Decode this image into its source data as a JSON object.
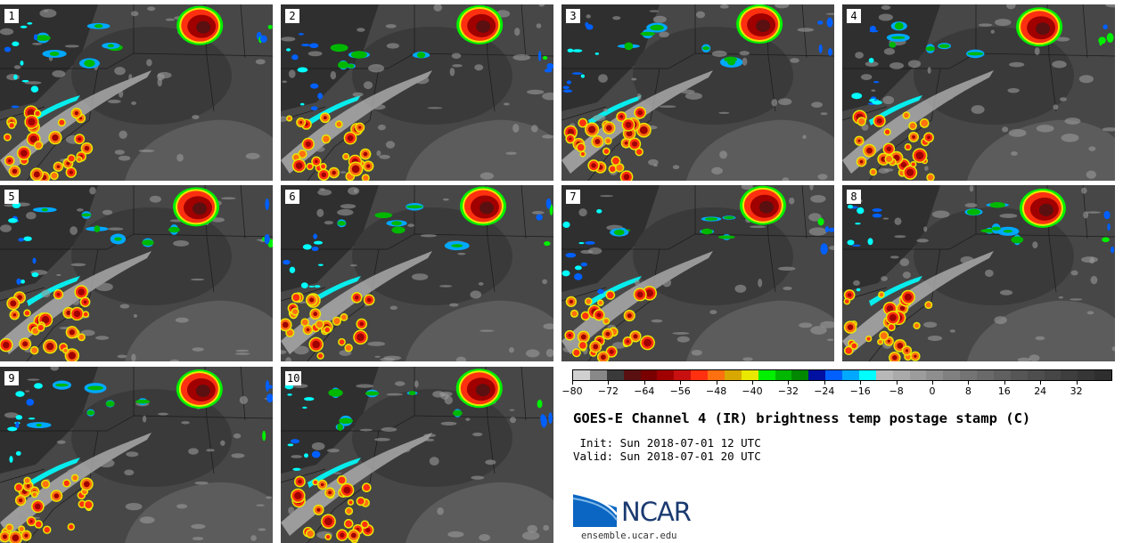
{
  "title": "GOES-E Channel 4 (IR) brightness temp postage stamp (C)",
  "init_line": " Init: Sun 2018-07-01 12 UTC",
  "valid_line": "Valid: Sun 2018-07-01 20 UTC",
  "logo_text": "NCAR",
  "site": "ensemble.ucar.edu",
  "panels": [
    "1",
    "2",
    "3",
    "4",
    "5",
    "6",
    "7",
    "8",
    "9",
    "10"
  ],
  "colorbar": {
    "colors": [
      "#d0d0d0",
      "#888888",
      "#3a3a3a",
      "#5a1010",
      "#7a0000",
      "#a00000",
      "#c81010",
      "#ff3010",
      "#ff7010",
      "#d8a800",
      "#e8e800",
      "#00f000",
      "#00b800",
      "#008800",
      "#0010a0",
      "#0060ff",
      "#00a8ff",
      "#00ffff",
      "#b8b8b8",
      "#aaaaaa",
      "#9c9c9c",
      "#8e8e8e",
      "#808080",
      "#747474",
      "#6a6a6a",
      "#606060",
      "#565656",
      "#4e4e4e",
      "#464646",
      "#3e3e3e",
      "#363636",
      "#2e2e2e"
    ],
    "min": -80,
    "max": 40,
    "ticks": [
      -80,
      -72,
      -64,
      -56,
      -48,
      -40,
      -32,
      -24,
      -16,
      -8,
      0,
      8,
      16,
      24,
      32
    ],
    "tick_labels": [
      "−80",
      "−72",
      "−64",
      "−56",
      "−48",
      "−40",
      "−32",
      "−24",
      "−16",
      "−8",
      "0",
      "8",
      "16",
      "24",
      "32"
    ]
  }
}
